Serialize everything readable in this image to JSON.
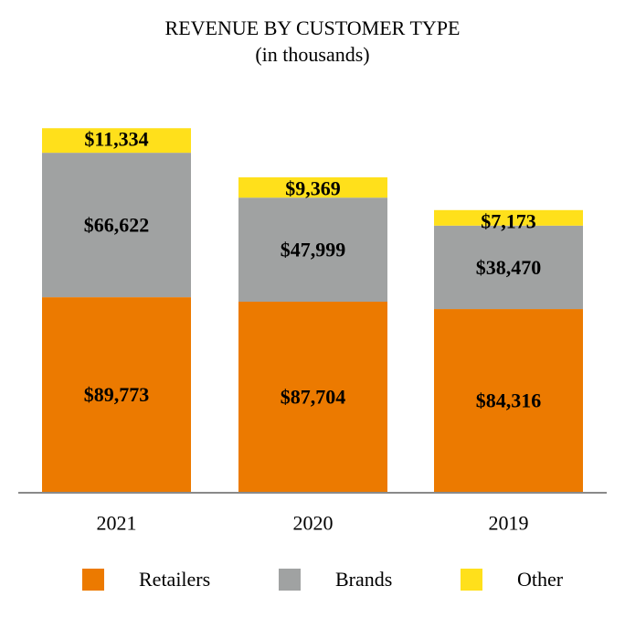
{
  "chart_data": {
    "type": "bar",
    "stacked": true,
    "title": "REVENUE BY CUSTOMER TYPE",
    "subtitle": "(in thousands)",
    "xlabel": "",
    "ylabel": "",
    "categories": [
      "2021",
      "2020",
      "2019"
    ],
    "series": [
      {
        "name": "Retailers",
        "color": "#EC7A00",
        "values": [
          89773,
          87704,
          84316
        ],
        "labels": [
          "$89,773",
          "$87,704",
          "$84,316"
        ]
      },
      {
        "name": "Brands",
        "color": "#A0A2A2",
        "values": [
          66622,
          47999,
          38470
        ],
        "labels": [
          "$66,622",
          "$47,999",
          "$38,470"
        ]
      },
      {
        "name": "Other",
        "color": "#FFE01B",
        "values": [
          11334,
          9369,
          7173
        ],
        "labels": [
          "$11,334",
          "$9,369",
          "$7,173"
        ]
      }
    ],
    "ylim": [
      0,
      180000
    ],
    "grid": false,
    "legend_position": "bottom"
  }
}
